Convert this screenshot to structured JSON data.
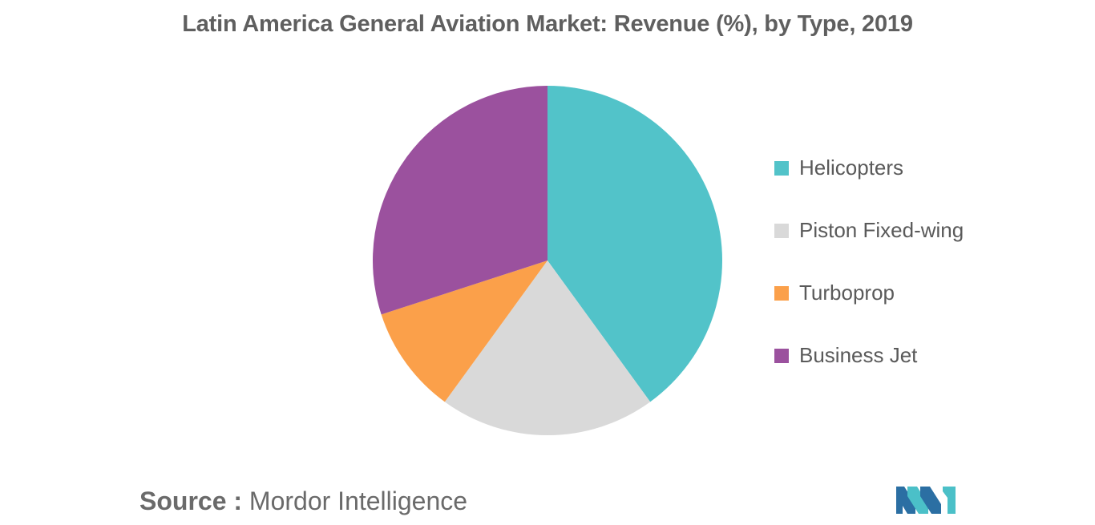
{
  "colors": {
    "helicopters": "#52c3c9",
    "piston": "#d9d9d9",
    "turboprop": "#fba04a",
    "business_jet": "#9b519e",
    "logo_dark": "#2b6fa3",
    "logo_light": "#4bc0c8"
  },
  "chart_data": {
    "type": "pie",
    "title": "Latin America General Aviation Market: Revenue (%), by Type, 2019",
    "categories": [
      "Helicopters",
      "Piston Fixed-wing",
      "Turboprop",
      "Business Jet"
    ],
    "values": [
      40,
      20,
      10,
      30
    ],
    "colors": [
      "#52c3c9",
      "#d9d9d9",
      "#fba04a",
      "#9b519e"
    ],
    "legend_position": "right"
  },
  "legend": {
    "items": [
      {
        "label": "Helicopters",
        "color": "#52c3c9"
      },
      {
        "label": "Piston Fixed-wing",
        "color": "#d9d9d9"
      },
      {
        "label": "Turboprop",
        "color": "#fba04a"
      },
      {
        "label": "Business Jet",
        "color": "#9b519e"
      }
    ]
  },
  "source": {
    "label": "Source :",
    "text": "Mordor Intelligence"
  },
  "logo": {
    "icon": "mordor-intelligence-logo"
  }
}
